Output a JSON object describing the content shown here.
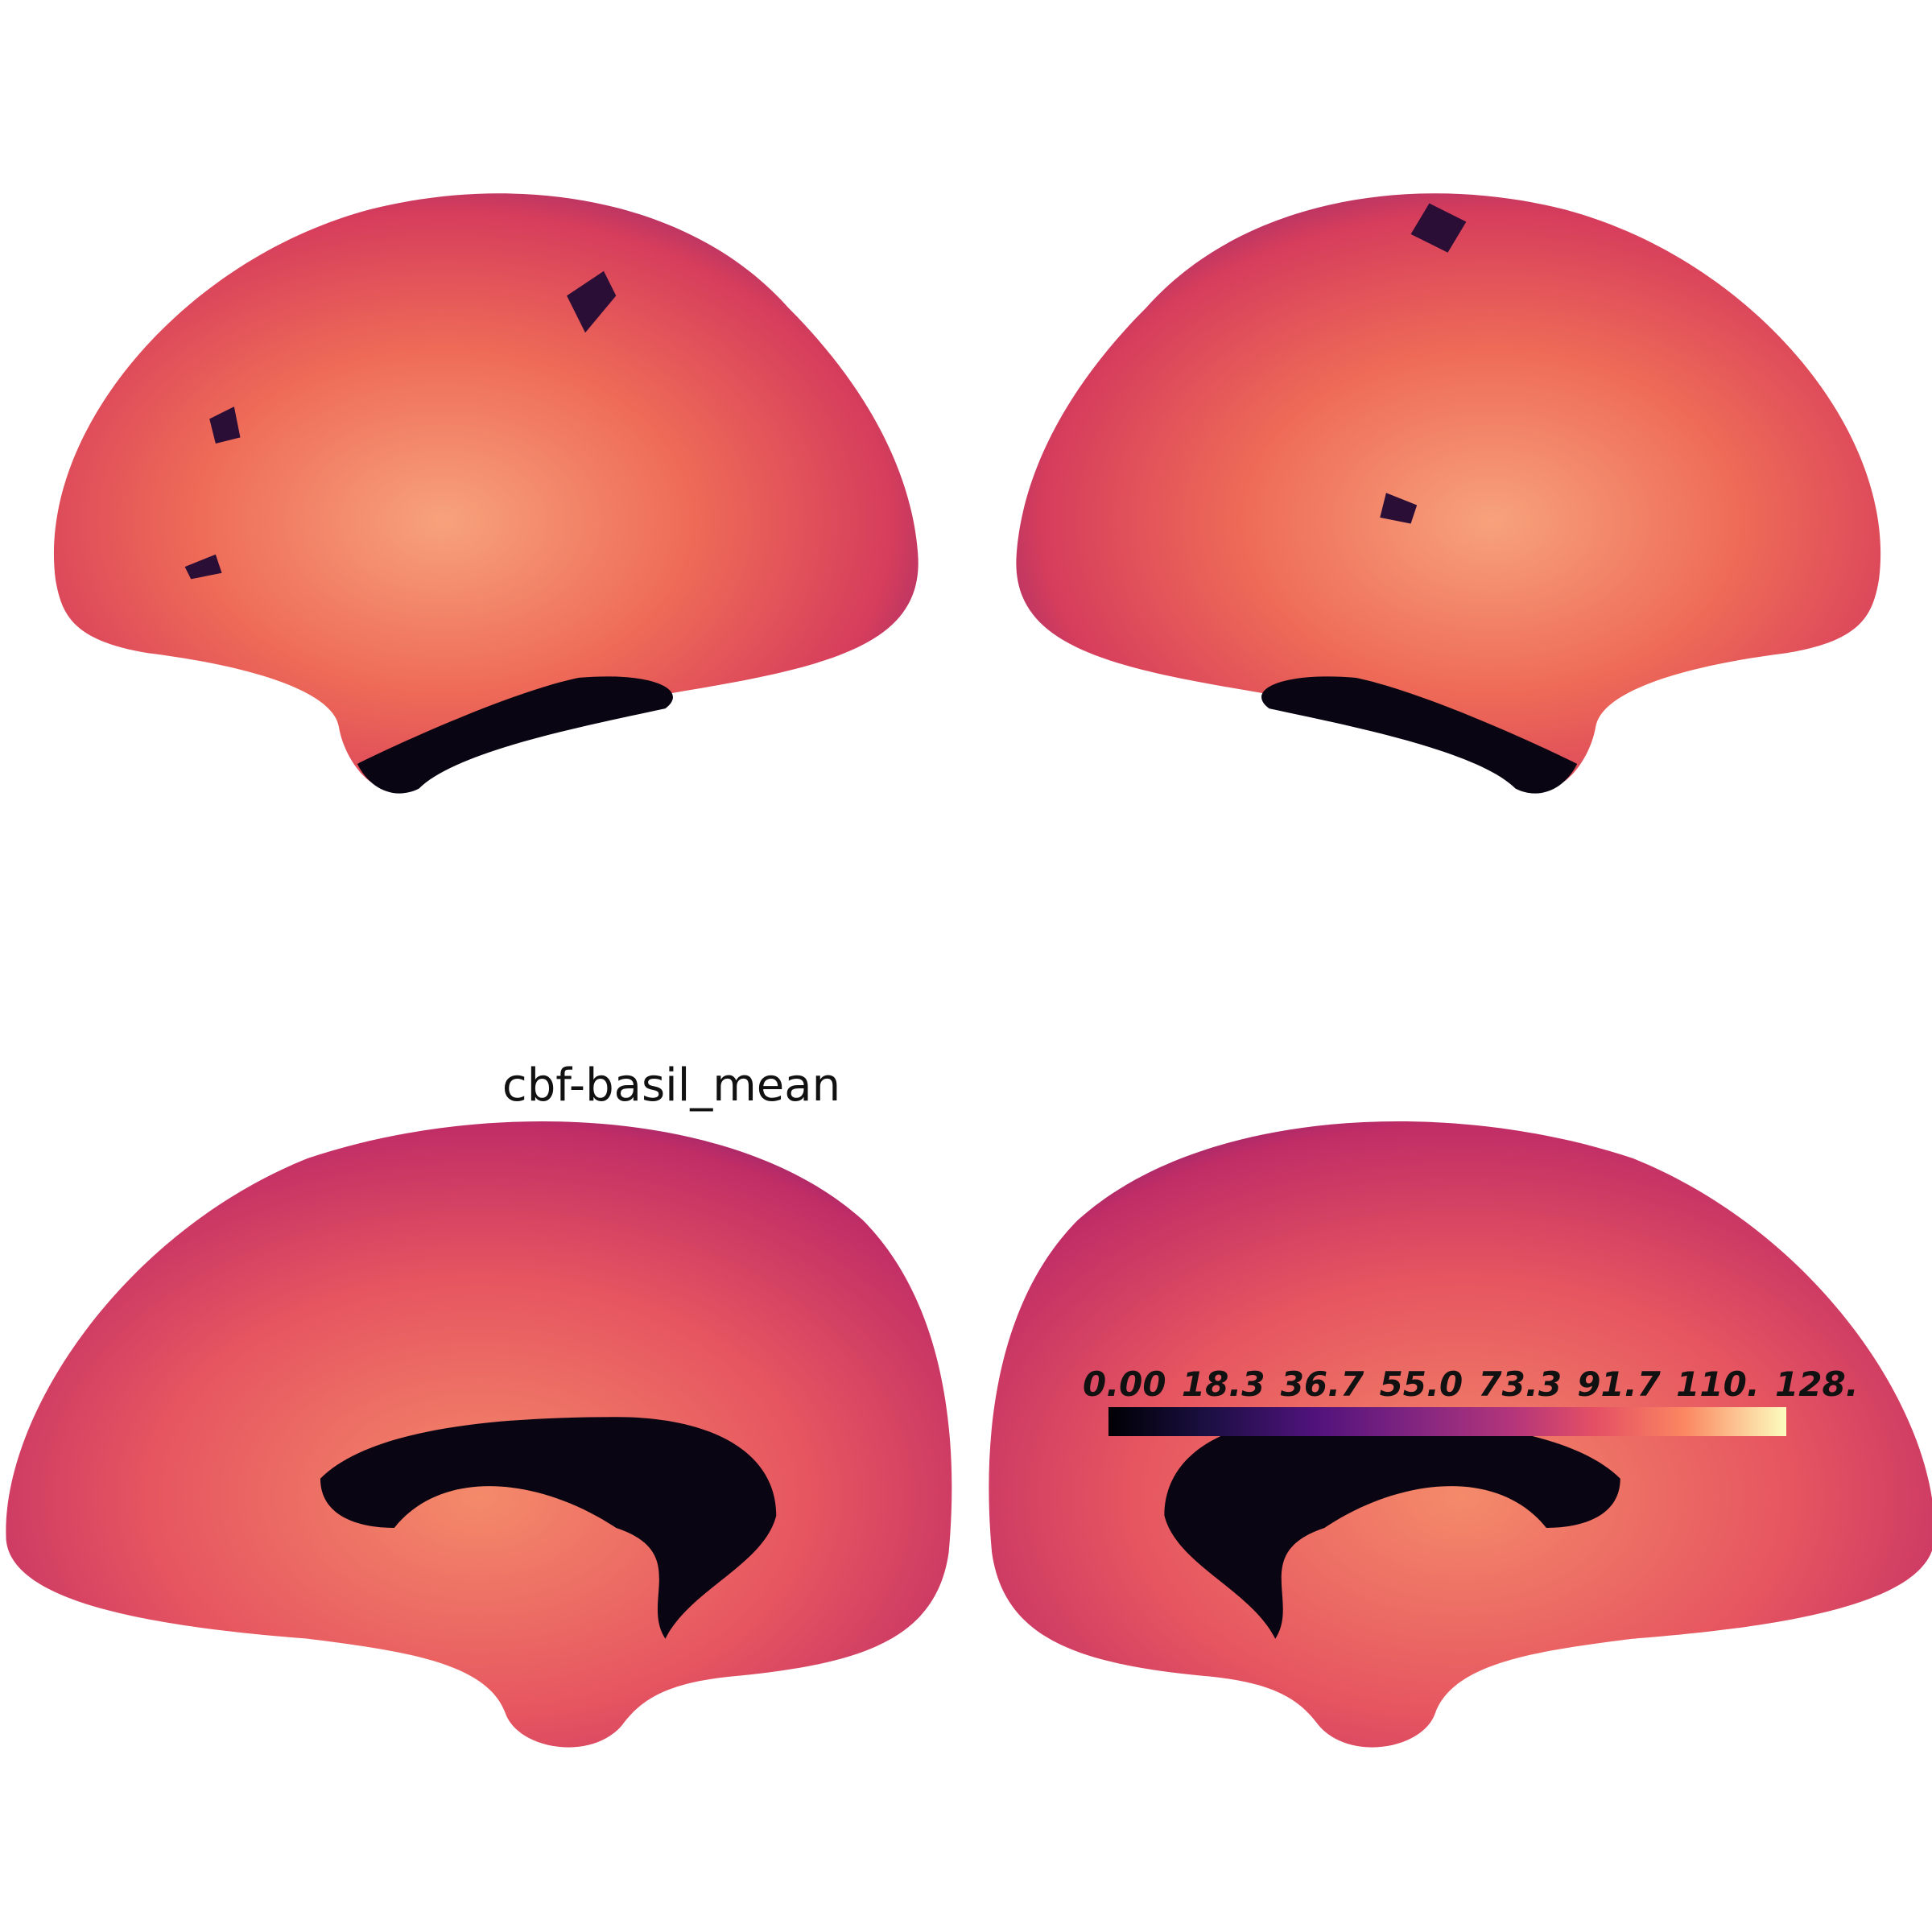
{
  "title": "cbf-basil_mean",
  "colorbar": {
    "ticks": [
      "0.00",
      "18.3",
      "36.7",
      "55.0",
      "73.3",
      "91.7",
      "110.",
      "128."
    ]
  }
}
